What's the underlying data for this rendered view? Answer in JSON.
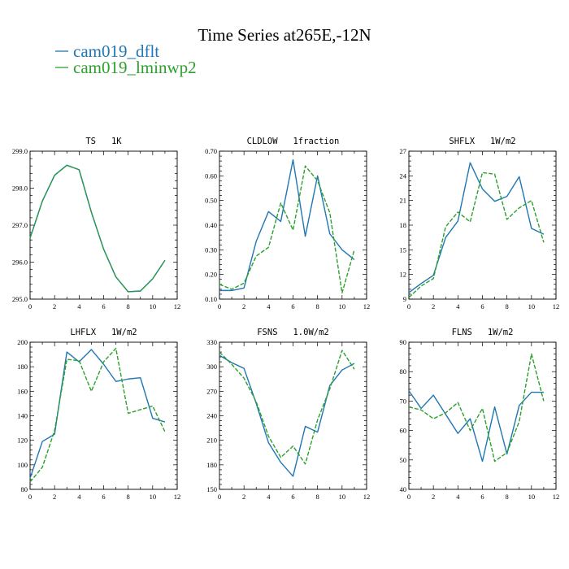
{
  "figure": {
    "title": "Time Series at265E,-12N",
    "legend": [
      {
        "label": "cam019_dflt",
        "color": "#1f77b4"
      },
      {
        "label": "cam019_lminwp2",
        "color": "#2ca02c"
      }
    ]
  },
  "chart_data": [
    {
      "type": "line",
      "title": "TS   1K",
      "x": [
        0,
        1,
        2,
        3,
        4,
        5,
        6,
        7,
        8,
        9,
        10,
        11
      ],
      "xlim": [
        0,
        12
      ],
      "xticks": [
        0,
        2,
        4,
        6,
        8,
        10,
        12
      ],
      "ylim": [
        295,
        299
      ],
      "yticks": [
        295,
        296,
        297,
        298,
        299
      ],
      "ytick_labels": [
        "295.0",
        "296.0",
        "297.0",
        "298.0",
        "299.0"
      ],
      "series": [
        {
          "name": "cam019_dflt",
          "color": "#1f77b4",
          "dash": "solid",
          "values": [
            296.65,
            297.65,
            298.35,
            298.62,
            298.5,
            297.35,
            296.35,
            295.6,
            295.2,
            295.22,
            295.55,
            296.05
          ]
        },
        {
          "name": "cam019_lminwp2",
          "color": "#2ca02c",
          "dash": "dashed",
          "values": [
            296.65,
            297.65,
            298.35,
            298.62,
            298.5,
            297.35,
            296.35,
            295.6,
            295.2,
            295.22,
            295.55,
            296.05
          ]
        }
      ]
    },
    {
      "type": "line",
      "title": "CLDLOW   1fraction",
      "x": [
        0,
        1,
        2,
        3,
        4,
        5,
        6,
        7,
        8,
        9,
        10,
        11
      ],
      "xlim": [
        0,
        12
      ],
      "xticks": [
        0,
        2,
        4,
        6,
        8,
        10,
        12
      ],
      "ylim": [
        0.1,
        0.7
      ],
      "yticks": [
        0.1,
        0.2,
        0.3,
        0.4,
        0.5,
        0.6,
        0.7
      ],
      "ytick_labels": [
        "0.10",
        "0.20",
        "0.30",
        "0.40",
        "0.50",
        "0.60",
        "0.70"
      ],
      "series": [
        {
          "name": "cam019_dflt",
          "color": "#1f77b4",
          "dash": "solid",
          "values": [
            0.135,
            0.135,
            0.145,
            0.335,
            0.455,
            0.415,
            0.665,
            0.355,
            0.6,
            0.365,
            0.3,
            0.26
          ]
        },
        {
          "name": "cam019_lminwp2",
          "color": "#2ca02c",
          "dash": "dashed",
          "values": [
            0.16,
            0.14,
            0.165,
            0.275,
            0.31,
            0.49,
            0.38,
            0.64,
            0.58,
            0.45,
            0.125,
            0.3
          ]
        }
      ]
    },
    {
      "type": "line",
      "title": "SHFLX   1W/m2",
      "x": [
        0,
        1,
        2,
        3,
        4,
        5,
        6,
        7,
        8,
        9,
        10,
        11
      ],
      "xlim": [
        0,
        12
      ],
      "xticks": [
        0,
        2,
        4,
        6,
        8,
        10,
        12
      ],
      "ylim": [
        9,
        27
      ],
      "yticks": [
        9,
        12,
        15,
        18,
        21,
        24,
        27
      ],
      "ytick_labels": [
        "9",
        "12",
        "15",
        "18",
        "21",
        "24",
        "27"
      ],
      "series": [
        {
          "name": "cam019_dflt",
          "color": "#1f77b4",
          "dash": "solid",
          "values": [
            9.8,
            10.9,
            11.9,
            16.5,
            18.5,
            25.6,
            22.4,
            20.9,
            21.5,
            23.9,
            17.6,
            16.9
          ]
        },
        {
          "name": "cam019_lminwp2",
          "color": "#2ca02c",
          "dash": "dashed",
          "values": [
            9.2,
            10.6,
            11.5,
            17.8,
            19.6,
            18.4,
            24.4,
            24.2,
            18.7,
            20.1,
            21.0,
            15.9
          ]
        }
      ]
    },
    {
      "type": "line",
      "title": "LHFLX   1W/m2",
      "x": [
        0,
        1,
        2,
        3,
        4,
        5,
        6,
        7,
        8,
        9,
        10,
        11
      ],
      "xlim": [
        0,
        12
      ],
      "xticks": [
        0,
        2,
        4,
        6,
        8,
        10,
        12
      ],
      "ylim": [
        80,
        200
      ],
      "yticks": [
        80,
        100,
        120,
        140,
        160,
        180,
        200
      ],
      "ytick_labels": [
        "80",
        "100",
        "120",
        "140",
        "160",
        "180",
        "200"
      ],
      "series": [
        {
          "name": "cam019_dflt",
          "color": "#1f77b4",
          "dash": "solid",
          "values": [
            89,
            119,
            125,
            192,
            184,
            194,
            182,
            168,
            170,
            171,
            138,
            135
          ]
        },
        {
          "name": "cam019_lminwp2",
          "color": "#2ca02c",
          "dash": "dashed",
          "values": [
            86,
            98,
            128,
            186,
            185,
            160,
            184,
            195,
            142,
            145,
            148,
            127
          ]
        }
      ]
    },
    {
      "type": "line",
      "title": "FSNS   1.0W/m2",
      "x": [
        0,
        1,
        2,
        3,
        4,
        5,
        6,
        7,
        8,
        9,
        10,
        11
      ],
      "xlim": [
        0,
        12
      ],
      "xticks": [
        0,
        2,
        4,
        6,
        8,
        10,
        12
      ],
      "ylim": [
        150,
        330
      ],
      "yticks": [
        150,
        180,
        210,
        240,
        270,
        300,
        330
      ],
      "ytick_labels": [
        "150",
        "180",
        "210",
        "240",
        "270",
        "300",
        "330"
      ],
      "series": [
        {
          "name": "cam019_dflt",
          "color": "#1f77b4",
          "dash": "solid",
          "values": [
            314,
            305,
            298,
            255,
            207,
            183,
            166,
            227,
            220,
            277,
            296,
            304
          ]
        },
        {
          "name": "cam019_lminwp2",
          "color": "#2ca02c",
          "dash": "dashed",
          "values": [
            318,
            303,
            286,
            257,
            215,
            189,
            203,
            181,
            235,
            273,
            320,
            297
          ]
        }
      ]
    },
    {
      "type": "line",
      "title": "FLNS   1W/m2",
      "x": [
        0,
        1,
        2,
        3,
        4,
        5,
        6,
        7,
        8,
        9,
        10,
        11
      ],
      "xlim": [
        0,
        12
      ],
      "xticks": [
        0,
        2,
        4,
        6,
        8,
        10,
        12
      ],
      "ylim": [
        40,
        90
      ],
      "yticks": [
        40,
        50,
        60,
        70,
        80,
        90
      ],
      "ytick_labels": [
        "40",
        "50",
        "60",
        "70",
        "80",
        "90"
      ],
      "series": [
        {
          "name": "cam019_dflt",
          "color": "#1f77b4",
          "dash": "solid",
          "values": [
            73.5,
            67.5,
            72,
            65.5,
            59,
            64,
            49.5,
            68,
            52,
            68.5,
            73,
            73
          ]
        },
        {
          "name": "cam019_lminwp2",
          "color": "#2ca02c",
          "dash": "dashed",
          "values": [
            68,
            67,
            64,
            66,
            69.5,
            60,
            67.5,
            49.5,
            52.5,
            63,
            86,
            70
          ]
        }
      ]
    }
  ]
}
